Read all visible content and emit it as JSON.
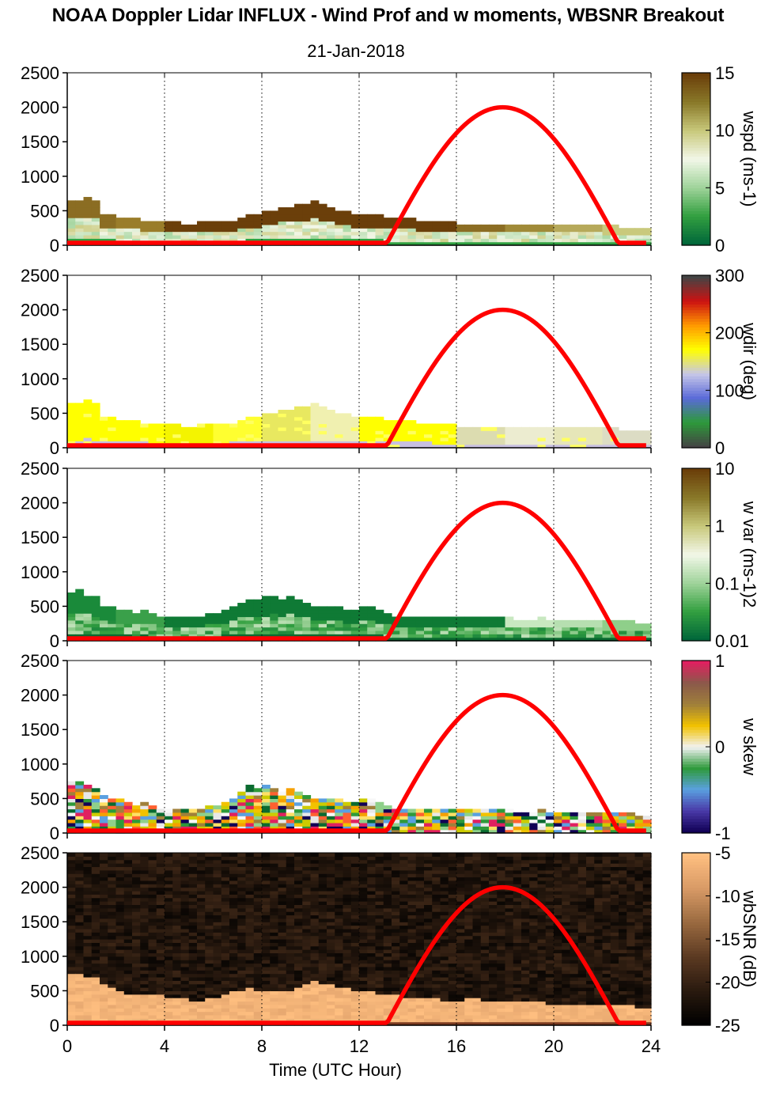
{
  "title": "NOAA Doppler Lidar INFLUX - Wind Prof and w moments, WBSNR Breakout",
  "subtitle": "21-Jan-2018",
  "chart_data": {
    "type": "heatmap",
    "xlabel": "Time (UTC Hour)",
    "xlim": [
      0,
      24
    ],
    "xticks": [
      0,
      4,
      8,
      12,
      16,
      20,
      24
    ],
    "ylim": [
      0,
      2500
    ],
    "yticks": [
      0,
      500,
      1000,
      1500,
      2000,
      2500
    ],
    "sun_curve": {
      "color": "#ff0000",
      "start_hour": 13.1,
      "peak_hour": 17.9,
      "end_hour": 22.7,
      "peak_height": 2000
    },
    "panels": [
      {
        "colorbar_label": "wspd (ms-1)",
        "colorbar_ticks": [
          "0",
          "5",
          "10",
          "15"
        ],
        "colormap": [
          "#00663a",
          "#33a040",
          "#9fd39a",
          "#f2f7e8",
          "#c9c97c",
          "#8a7a2a",
          "#6b3f0a"
        ],
        "top_heights": [
          650,
          650,
          700,
          650,
          450,
          450,
          400,
          400,
          380,
          350,
          330,
          330,
          320,
          320,
          300,
          300,
          320,
          330,
          330,
          330,
          350,
          370,
          420,
          450,
          480,
          480,
          550,
          550,
          600,
          600,
          650,
          600,
          550,
          500,
          500,
          450,
          450,
          420,
          420,
          400,
          380,
          380,
          370,
          350,
          350,
          330,
          320,
          310,
          300,
          300,
          300,
          300,
          290,
          290,
          290,
          290,
          300,
          300,
          300,
          300,
          300,
          290,
          290,
          290,
          280,
          280,
          270,
          260,
          250,
          250,
          240,
          230
        ],
        "top_colors": [
          "#8b6d23",
          "#9a7d2a",
          "#6b3f0a",
          "#6b3f0a",
          "#6b3f0a",
          "#6b3f0a",
          "#6b3f0a",
          "#6b3f0a",
          "#8b6d23",
          "#a08a38",
          "#b6a95a",
          "#c9c97c"
        ],
        "base_color": "#2fa040"
      },
      {
        "colorbar_label": "wdir (deg)",
        "colorbar_ticks": [
          "0",
          "100",
          "200",
          "300"
        ],
        "colormap": [
          "#444444",
          "#2d9a3a",
          "#5a6ad8",
          "#c7c7e8",
          "#ffff00",
          "#ff9900",
          "#cc1111",
          "#444444"
        ],
        "top_heights": [
          650,
          650,
          700,
          650,
          450,
          450,
          400,
          400,
          380,
          350,
          330,
          330,
          320,
          320,
          300,
          300,
          320,
          330,
          330,
          330,
          350,
          370,
          420,
          450,
          480,
          480,
          550,
          550,
          600,
          600,
          650,
          600,
          550,
          500,
          500,
          450,
          450,
          420,
          420,
          400,
          380,
          380,
          370,
          350,
          350,
          330,
          320,
          310,
          300,
          300,
          300,
          300,
          290,
          290,
          290,
          290,
          300,
          300,
          300,
          300,
          300,
          290,
          290,
          290,
          280,
          280,
          270,
          260,
          250,
          250,
          240,
          230
        ],
        "top_colors": [
          "#ffff00",
          "#ffff00",
          "#f4f400",
          "#ffff30",
          "#e8e860",
          "#f0f0b0",
          "#ffff00",
          "#ffff00",
          "#dcdcb0",
          "#ececd0",
          "#e6e6b8",
          "#dcdcc4"
        ],
        "base_color": "#c8c0e0"
      },
      {
        "colorbar_label": "w var (ms-1)2",
        "colorbar_ticks": [
          "0.01",
          "0.1",
          "1",
          "10"
        ],
        "colormap": [
          "#00663a",
          "#33a040",
          "#9fd39a",
          "#f2f7e8",
          "#c9c97c",
          "#8a7a2a",
          "#6b3f0a"
        ],
        "top_heights": [
          700,
          720,
          650,
          620,
          500,
          480,
          450,
          420,
          400,
          420,
          380,
          350,
          320,
          350,
          320,
          330,
          350,
          380,
          400,
          450,
          500,
          550,
          600,
          580,
          620,
          650,
          600,
          650,
          600,
          550,
          500,
          500,
          480,
          480,
          450,
          450,
          500,
          480,
          420,
          380,
          350,
          350,
          330,
          330,
          330,
          350,
          350,
          330,
          350,
          320,
          350,
          330,
          330,
          310,
          330,
          300,
          300,
          290,
          310,
          300,
          300,
          300,
          300,
          280,
          280,
          280,
          270,
          260,
          270,
          260,
          250,
          240
        ],
        "top_colors": [
          "#1a8a3a",
          "#3aa04a",
          "#0f7a35",
          "#0f7a35",
          "#0f7a35",
          "#0f7a35",
          "#0f7a35",
          "#0f7a35",
          "#0f7a35",
          "#c8e8c0",
          "#b6dfb0",
          "#8fcf8a"
        ],
        "base_color": "#0a6a30"
      },
      {
        "colorbar_label": "w skew",
        "colorbar_ticks": [
          "-1",
          "0",
          "1"
        ],
        "colormap": [
          "#110055",
          "#4a3aa8",
          "#5aa0e0",
          "#2e9a3a",
          "#f2f2f2",
          "#f2c200",
          "#a0803a",
          "#8a5a4a",
          "#e02060"
        ],
        "top_heights": [
          750,
          740,
          700,
          650,
          520,
          500,
          460,
          420,
          400,
          420,
          380,
          350,
          320,
          350,
          320,
          330,
          350,
          380,
          400,
          450,
          500,
          600,
          700,
          650,
          700,
          650,
          600,
          650,
          600,
          550,
          500,
          500,
          480,
          480,
          450,
          450,
          500,
          480,
          420,
          380,
          350,
          350,
          330,
          330,
          330,
          350,
          350,
          330,
          350,
          320,
          350,
          330,
          330,
          310,
          330,
          300,
          300,
          290,
          310,
          300,
          300,
          300,
          300,
          280,
          280,
          280,
          270,
          260,
          270,
          260,
          250,
          240
        ],
        "palette": [
          "#f2c200",
          "#2e9a3a",
          "#e8e8e8",
          "#5aa0e0",
          "#e02060",
          "#f7f7f7",
          "#0a6a30",
          "#f6a000",
          "#a0803a",
          "#cccc00",
          "#ffe066",
          "#8fd08a",
          "#110055",
          "#ff6030"
        ],
        "base_color": "#ffffff"
      },
      {
        "colorbar_label": "wbSNR (dB)",
        "colorbar_ticks": [
          "-25",
          "-20",
          "-15",
          "-10",
          "-5"
        ],
        "colormap": [
          "#000000",
          "#2a1a0f",
          "#5c3a22",
          "#9a6a40",
          "#d89a66",
          "#ffbf80"
        ],
        "top_heights": [
          740,
          740,
          700,
          690,
          560,
          520,
          470,
          450,
          440,
          430,
          430,
          420,
          400,
          380,
          370,
          350,
          340,
          360,
          380,
          420,
          460,
          500,
          520,
          500,
          480,
          470,
          480,
          500,
          530,
          560,
          610,
          590,
          570,
          540,
          520,
          500,
          480,
          460,
          440,
          420,
          410,
          400,
          390,
          380,
          370,
          360,
          350,
          350,
          350,
          360,
          360,
          350,
          350,
          340,
          330,
          320,
          320,
          310,
          310,
          300,
          300,
          300,
          300,
          290,
          290,
          290,
          290,
          280,
          270,
          260,
          250,
          240
        ],
        "above_color": "#2a1a0f",
        "below_color": "#ffbf80"
      }
    ]
  }
}
